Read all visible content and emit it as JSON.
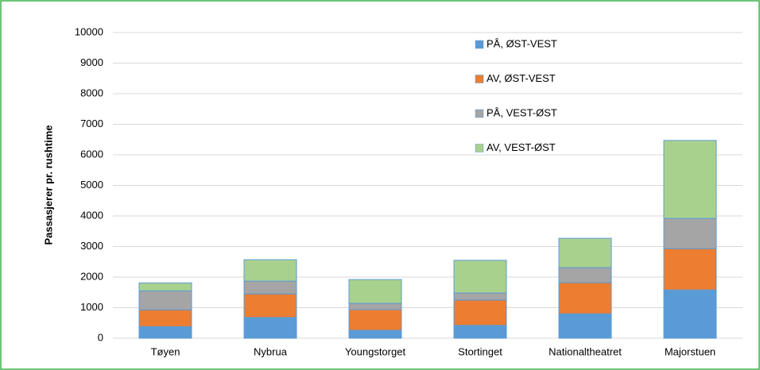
{
  "chart_data": {
    "type": "stacked_bar",
    "y_label": "Passasjerer pr. rushtime",
    "categories": [
      "Tøyen",
      "Nybrua",
      "Youngstorget",
      "Stortinget",
      "Nationaltheatret",
      "Majorstuen"
    ],
    "series": [
      {
        "name": "PÅ, ØST-VEST",
        "color": "#5b9bd5",
        "values": [
          380,
          680,
          260,
          420,
          800,
          1580
        ]
      },
      {
        "name": "AV, ØST-VEST",
        "color": "#ed7d31",
        "values": [
          550,
          770,
          675,
          830,
          1020,
          1350
        ]
      },
      {
        "name": "PÅ, VEST-ØST",
        "color": "#a5a5a5",
        "values": [
          620,
          420,
          205,
          230,
          490,
          990
        ]
      },
      {
        "name": "AV, VEST-ØST",
        "color": "#a9d18e",
        "values": [
          260,
          700,
          780,
          1070,
          960,
          2550
        ]
      }
    ],
    "ylim": [
      0,
      10000
    ],
    "yticks": [
      0,
      1000,
      2000,
      3000,
      4000,
      5000,
      6000,
      7000,
      8000,
      9000,
      10000
    ],
    "grid": true,
    "legend": "top-right"
  }
}
